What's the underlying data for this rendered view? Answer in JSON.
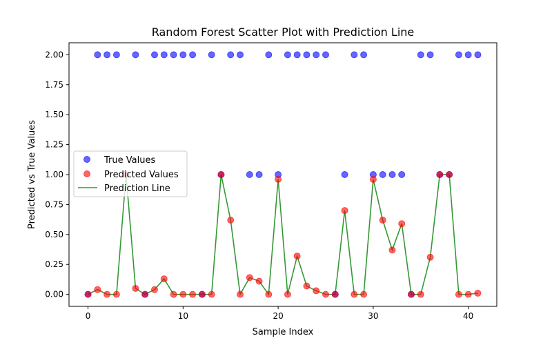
{
  "chart_data": {
    "type": "scatter",
    "title": "Random Forest Scatter Plot with Prediction Line",
    "xlabel": "Sample Index",
    "ylabel": "Predicted vs True Values",
    "xlim": [
      -2,
      43
    ],
    "ylim": [
      -0.1,
      2.1
    ],
    "x_ticks": [
      0,
      10,
      20,
      30,
      40
    ],
    "y_ticks": [
      0.0,
      0.25,
      0.5,
      0.75,
      1.0,
      1.25,
      1.5,
      1.75,
      2.0
    ],
    "y_tick_labels": [
      "0.00",
      "0.25",
      "0.50",
      "0.75",
      "1.00",
      "1.25",
      "1.50",
      "1.75",
      "2.00"
    ],
    "grid": false,
    "legend_position": "center-left",
    "x": [
      0,
      1,
      2,
      3,
      4,
      5,
      6,
      7,
      8,
      9,
      10,
      11,
      12,
      13,
      14,
      15,
      16,
      17,
      18,
      19,
      20,
      21,
      22,
      23,
      24,
      25,
      26,
      27,
      28,
      29,
      30,
      31,
      32,
      33,
      34,
      35,
      36,
      37,
      38,
      39,
      40,
      41
    ],
    "series": [
      {
        "name": "True Values",
        "kind": "scatter",
        "color": "#0000ff",
        "values": [
          0,
          2,
          2,
          2,
          1,
          2,
          0,
          2,
          2,
          2,
          2,
          2,
          0,
          2,
          1,
          2,
          2,
          1,
          1,
          2,
          1,
          2,
          2,
          2,
          2,
          2,
          0,
          1,
          2,
          2,
          1,
          1,
          1,
          1,
          0,
          2,
          2,
          1,
          1,
          2,
          2,
          2
        ]
      },
      {
        "name": "Predicted Values",
        "kind": "scatter",
        "color": "#ff0000",
        "values": [
          0,
          0.04,
          0,
          0,
          1.0,
          0.05,
          0,
          0.04,
          0.13,
          0,
          0,
          0,
          0,
          0,
          1.0,
          0.62,
          0,
          0.14,
          0.11,
          0,
          0.96,
          0,
          0.32,
          0.07,
          0.03,
          0,
          0,
          0.7,
          0,
          0,
          0.96,
          0.62,
          0.37,
          0.59,
          0,
          0,
          0.31,
          1.0,
          1.0,
          0,
          0,
          0.01
        ]
      },
      {
        "name": "Prediction Line",
        "kind": "line",
        "color": "#008000",
        "values": [
          0,
          0.04,
          0,
          0,
          1.0,
          0.05,
          0,
          0.04,
          0.13,
          0,
          0,
          0,
          0,
          0,
          1.0,
          0.62,
          0,
          0.14,
          0.11,
          0,
          0.96,
          0,
          0.32,
          0.07,
          0.03,
          0,
          0,
          0.7,
          0,
          0,
          0.96,
          0.62,
          0.37,
          0.59,
          0,
          0,
          0.31,
          1.0,
          1.0,
          0,
          0,
          0.01
        ]
      }
    ]
  }
}
